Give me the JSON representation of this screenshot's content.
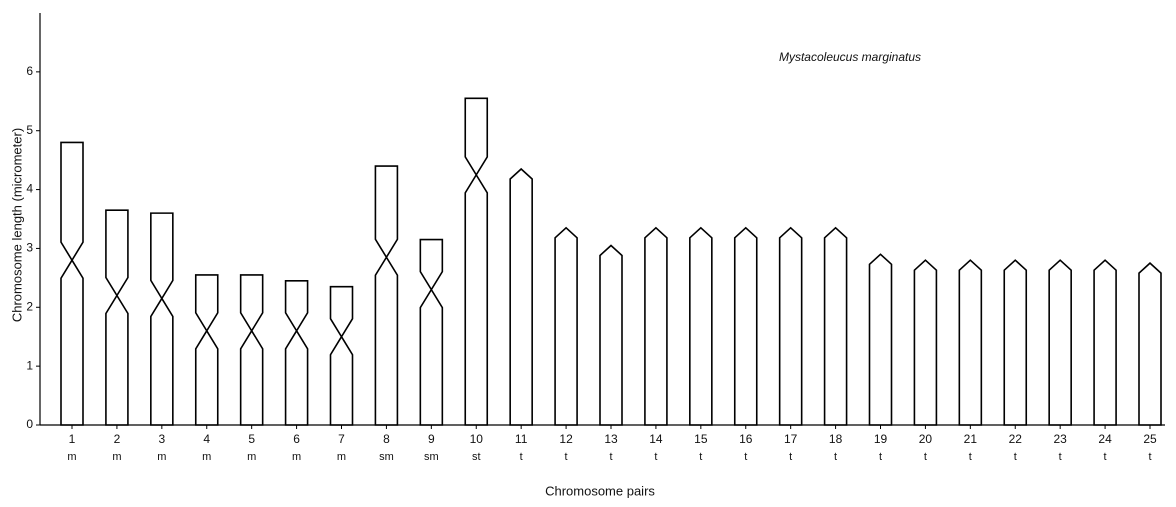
{
  "chart_data": {
    "type": "idiogram",
    "title": "Mystacoleucus marginatus",
    "x_label": "Chromosome pairs",
    "y_label": "Chromosome length (micrometer)",
    "categories": [
      "1",
      "2",
      "3",
      "4",
      "5",
      "6",
      "7",
      "8",
      "9",
      "10",
      "11",
      "12",
      "13",
      "14",
      "15",
      "16",
      "17",
      "18",
      "19",
      "20",
      "21",
      "22",
      "23",
      "24",
      "25"
    ],
    "types": [
      "m",
      "m",
      "m",
      "m",
      "m",
      "m",
      "m",
      "sm",
      "sm",
      "st",
      "t",
      "t",
      "t",
      "t",
      "t",
      "t",
      "t",
      "t",
      "t",
      "t",
      "t",
      "t",
      "t",
      "t",
      "t"
    ],
    "values": [
      4.8,
      3.65,
      3.6,
      2.55,
      2.55,
      2.45,
      2.35,
      4.4,
      3.15,
      5.55,
      4.35,
      3.35,
      3.05,
      3.35,
      3.35,
      3.35,
      3.35,
      3.35,
      2.9,
      2.8,
      2.8,
      2.8,
      2.8,
      2.8,
      2.75
    ],
    "centromere": [
      2.8,
      2.2,
      2.15,
      1.6,
      1.6,
      1.6,
      1.5,
      2.85,
      2.3,
      4.25,
      null,
      null,
      null,
      null,
      null,
      null,
      null,
      null,
      null,
      null,
      null,
      null,
      null,
      null,
      null
    ],
    "color": "#000000",
    "ylim": [
      0,
      7
    ],
    "yticks": [
      0,
      1,
      2,
      3,
      4,
      5,
      6
    ]
  }
}
